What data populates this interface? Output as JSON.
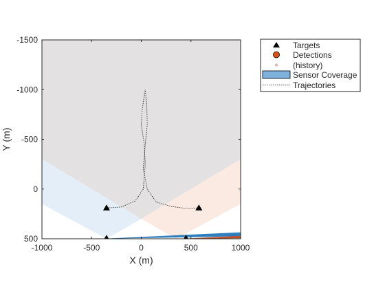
{
  "chart_data": {
    "type": "scatter",
    "title": "",
    "xlabel": "X (m)",
    "ylabel": "Y (m)",
    "xlim": [
      -1000,
      1000
    ],
    "ylim": [
      -1500,
      500
    ],
    "y_reversed": true,
    "grid": false,
    "legend_placement": "outside-top-right",
    "xticks": [
      -1000,
      -500,
      0,
      500,
      1000
    ],
    "yticks": [
      -1500,
      -1000,
      -500,
      0,
      500
    ],
    "xtick_labels": [
      "-1000",
      "-500",
      "0",
      "500",
      "1000"
    ],
    "ytick_labels": [
      "-1500",
      "-1000",
      "-500",
      "0",
      "500"
    ],
    "legend": [
      {
        "key": "targets",
        "label": "Targets"
      },
      {
        "key": "detections",
        "label": "Detections"
      },
      {
        "key": "history",
        "label": "(history)"
      },
      {
        "key": "coverage",
        "label": "Sensor Coverage"
      },
      {
        "key": "trajectories",
        "label": "Trajectories"
      }
    ],
    "colors": {
      "target": "#000000",
      "detection": "#d95319",
      "history": "#d9b9b0",
      "coverage_legend": "#7eb2dd",
      "coverage_gray": "#e3e1e1",
      "coverage_blue": "#e4eef8",
      "coverage_peach": "#fbeae2",
      "sensor_blue": "#2f7fbf",
      "sensor_red": "#c3502b",
      "trajectory": "#404040"
    },
    "coverage_regions": [
      {
        "name": "gray",
        "color_key": "coverage_gray",
        "points": [
          [
            -1000,
            -1500
          ],
          [
            1000,
            -1500
          ],
          [
            1000,
            -300
          ],
          [
            0,
            300
          ],
          [
            -1000,
            -300
          ]
        ]
      },
      {
        "name": "blue",
        "color_key": "coverage_blue",
        "points": [
          [
            -1000,
            -300
          ],
          [
            0,
            300
          ],
          [
            -350,
            500
          ],
          [
            -1000,
            150
          ]
        ]
      },
      {
        "name": "peach",
        "color_key": "coverage_peach",
        "points": [
          [
            1000,
            -300
          ],
          [
            0,
            300
          ],
          [
            350,
            500
          ],
          [
            1000,
            150
          ]
        ]
      }
    ],
    "sensor_wedges": [
      {
        "color_key": "sensor_blue",
        "points": [
          [
            -400,
            500
          ],
          [
            1000,
            435
          ],
          [
            1000,
            475
          ]
        ]
      },
      {
        "color_key": "sensor_red",
        "points": [
          [
            400,
            500
          ],
          [
            1000,
            470
          ],
          [
            1000,
            495
          ]
        ]
      }
    ],
    "targets": [
      {
        "x": -350,
        "y": 190
      },
      {
        "x": 580,
        "y": 190
      },
      {
        "x": -350,
        "y": 495
      },
      {
        "x": 450,
        "y": 495
      }
    ],
    "trajectories": [
      {
        "points": [
          [
            -350,
            190
          ],
          [
            -200,
            180
          ],
          [
            -60,
            120
          ],
          [
            20,
            0
          ],
          [
            40,
            -250
          ],
          [
            30,
            -450
          ],
          [
            0,
            -650
          ],
          [
            10,
            -800
          ],
          [
            40,
            -1000
          ]
        ]
      },
      {
        "points": [
          [
            580,
            190
          ],
          [
            450,
            195
          ],
          [
            300,
            175
          ],
          [
            150,
            130
          ],
          [
            60,
            0
          ],
          [
            20,
            -200
          ],
          [
            40,
            -450
          ],
          [
            60,
            -650
          ],
          [
            55,
            -850
          ],
          [
            40,
            -1000
          ]
        ]
      }
    ]
  }
}
